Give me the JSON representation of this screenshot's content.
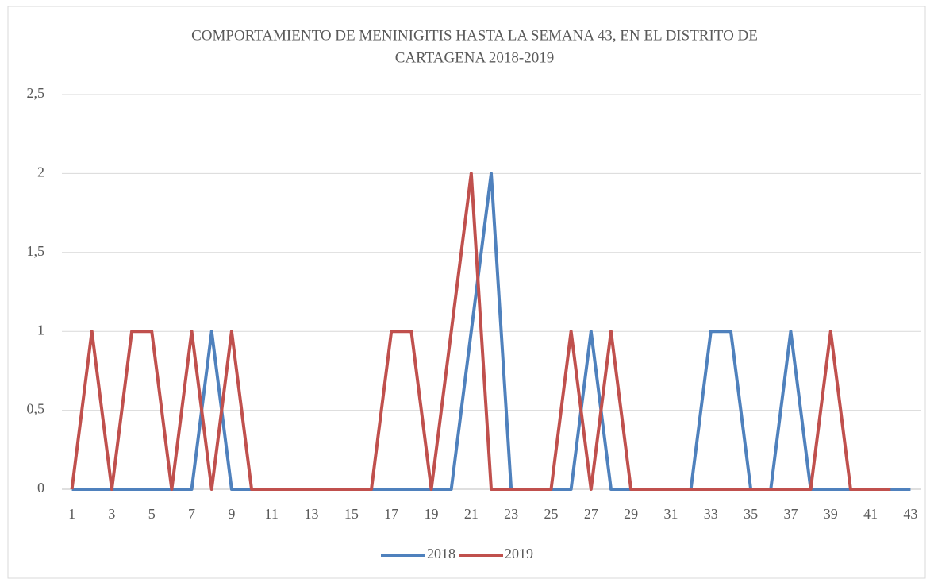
{
  "chart_data": {
    "type": "line",
    "title": [
      "COMPORTAMIENTO DE MENINIGITIS HASTA LA SEMANA 43, EN EL DISTRITO DE",
      "CARTAGENA 2018-2019"
    ],
    "categories": [
      "1",
      null,
      "3",
      null,
      "5",
      null,
      "7",
      null,
      "9",
      null,
      "11",
      null,
      "13",
      null,
      "15",
      null,
      "17",
      null,
      "19",
      null,
      "21",
      null,
      "23",
      null,
      "25",
      null,
      "27",
      null,
      "29",
      null,
      "31",
      null,
      "33",
      null,
      "35",
      null,
      "37",
      null,
      "39",
      null,
      "41",
      null,
      "43"
    ],
    "series": [
      {
        "name": "2018",
        "color": "#4f81bd",
        "values": [
          0,
          0,
          0,
          0,
          0,
          0,
          0,
          1,
          0,
          0,
          0,
          0,
          0,
          0,
          0,
          0,
          0,
          0,
          0,
          0,
          1,
          2,
          0,
          0,
          0,
          0,
          1,
          0,
          0,
          0,
          0,
          0,
          1,
          1,
          0,
          0,
          1,
          0,
          0,
          0,
          0,
          0,
          0
        ]
      },
      {
        "name": "2019",
        "color": "#c0504d",
        "values": [
          0,
          1,
          0,
          1,
          1,
          0,
          1,
          0,
          1,
          0,
          0,
          0,
          0,
          0,
          0,
          0,
          1,
          1,
          0,
          1,
          2,
          0,
          0,
          0,
          0,
          1,
          0,
          1,
          0,
          0,
          0,
          0,
          0,
          0,
          0,
          0,
          0,
          0,
          1,
          0,
          0,
          0,
          null
        ]
      }
    ],
    "ylim": [
      0,
      2.5
    ],
    "yticks": [
      0,
      {
        "value": 0.5,
        "label": "0,5"
      },
      1,
      {
        "value": 1.5,
        "label": "1,5"
      },
      2,
      {
        "value": 2.5,
        "label": "2,5"
      }
    ],
    "grid": true,
    "legend": "bottom"
  }
}
